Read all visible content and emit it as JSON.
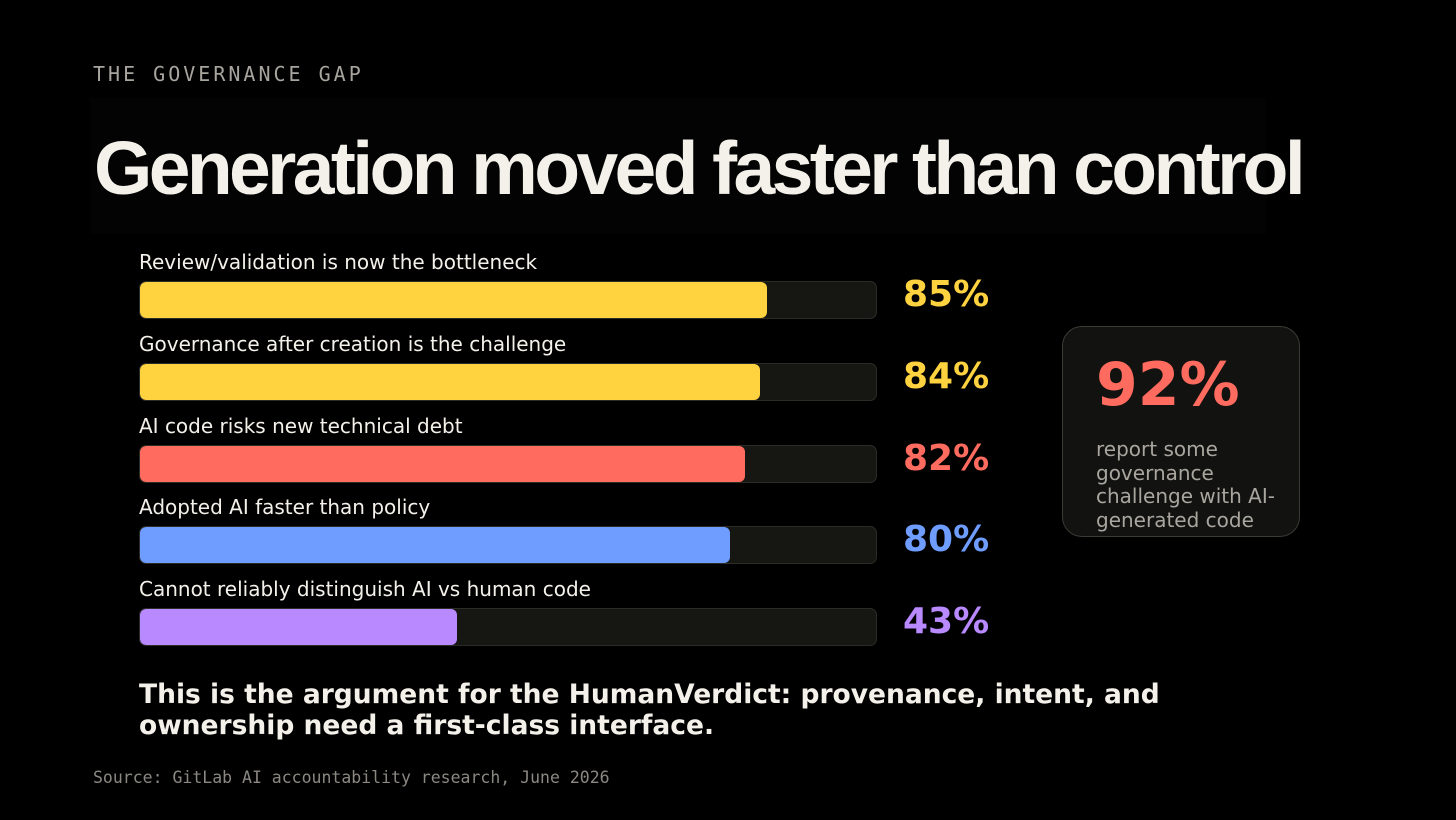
{
  "eyebrow": "THE GOVERNANCE GAP",
  "title": "Generation moved faster than control",
  "chart_data": {
    "type": "bar",
    "orientation": "horizontal",
    "categories": [
      "Review/validation is now the bottleneck",
      "Governance after creation is the challenge",
      "AI code risks new technical debt",
      "Adopted AI faster than policy",
      "Cannot reliably distinguish AI vs human code"
    ],
    "values": [
      85,
      84,
      82,
      80,
      43
    ],
    "value_labels": [
      "85%",
      "84%",
      "82%",
      "80%",
      "43%"
    ],
    "colors": [
      "#ffd23f",
      "#ffd23f",
      "#ff6b5e",
      "#6f9dff",
      "#b889ff"
    ],
    "xlim": [
      0,
      100
    ],
    "grid": false
  },
  "callout": {
    "value": "92%",
    "text": "report some governance challenge with AI-generated code",
    "color": "#ff6b5e"
  },
  "argument": "This is the argument for the HumanVerdict: provenance, intent, and ownership need a first-class interface.",
  "source": "Source: GitLab AI accountability research, June 2026"
}
